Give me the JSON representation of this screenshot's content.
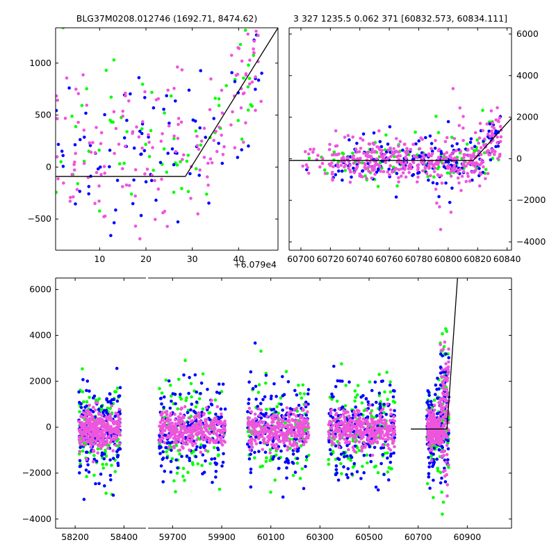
{
  "titles": {
    "top_left": "BLG37M0208.012746 (1692.71, 8474.62)",
    "top_right": "3 327 1235.5 0.062 371 [60832.573, 60834.111]"
  },
  "offset_label": "+6.079e4",
  "colors": {
    "green": "#00ff00",
    "blue": "#0000ff",
    "magenta": "#ee55dd",
    "model": "#000000"
  },
  "chart_data": [
    {
      "id": "top-left",
      "type": "scatter",
      "title": "BLG37M0208.012746 (1692.71, 8474.62)",
      "x_offset_label": "+6.079e4",
      "xlim": [
        0.5,
        48.5
      ],
      "ylim": [
        -800,
        1340
      ],
      "xticks": [
        10,
        20,
        30,
        40
      ],
      "yticks": [
        -500,
        0,
        500,
        1000
      ],
      "model_line": {
        "x": [
          0.5,
          28.5,
          48.5
        ],
        "y": [
          -90,
          -90,
          1340
        ]
      },
      "series": [
        {
          "color": "green",
          "count": 70
        },
        {
          "color": "blue",
          "count": 85
        },
        {
          "color": "magenta",
          "count": 160
        }
      ],
      "grid": false
    },
    {
      "id": "top-right",
      "type": "scatter",
      "title": "3 327 1235.5 0.062 371 [60832.573, 60834.111]",
      "xlim": [
        60692,
        60843
      ],
      "ylim": [
        -4400,
        6300
      ],
      "xticks": [
        60700,
        60720,
        60740,
        60760,
        60780,
        60800,
        60820,
        60840
      ],
      "yticks": [
        -4000,
        -2000,
        0,
        2000,
        4000,
        6000
      ],
      "yaxis_position": "right",
      "model_line": {
        "x": [
          60692,
          60817,
          60843
        ],
        "y": [
          -80,
          -80,
          1950
        ]
      },
      "series": [
        {
          "color": "green",
          "count": 110
        },
        {
          "color": "blue",
          "count": 190
        },
        {
          "color": "magenta",
          "count": 420
        }
      ],
      "grid": false
    },
    {
      "id": "bottom",
      "type": "scatter",
      "broken_x_axis": true,
      "segments": [
        {
          "xlim": [
            58120,
            58490
          ],
          "xticks": [
            58200,
            58400
          ]
        },
        {
          "xlim": [
            59600,
            61080
          ],
          "xticks": [
            59700,
            59900,
            60100,
            60300,
            60500,
            60700,
            60900
          ]
        }
      ],
      "ylim": [
        -4400,
        6500
      ],
      "yticks": [
        -4000,
        -2000,
        0,
        2000,
        4000,
        6000
      ],
      "model_line": {
        "x": [
          60670,
          60817,
          60860
        ],
        "y": [
          -80,
          -80,
          6500
        ]
      },
      "clusters": [
        {
          "center": 58300,
          "width": 170
        },
        {
          "center": 59780,
          "width": 270
        },
        {
          "center": 60130,
          "width": 250
        },
        {
          "center": 60470,
          "width": 270
        },
        {
          "center": 60780,
          "width": 90
        }
      ],
      "series": [
        {
          "color": "green",
          "count": 600
        },
        {
          "color": "blue",
          "count": 900
        },
        {
          "color": "magenta",
          "count": 1600
        }
      ],
      "grid": false
    }
  ]
}
